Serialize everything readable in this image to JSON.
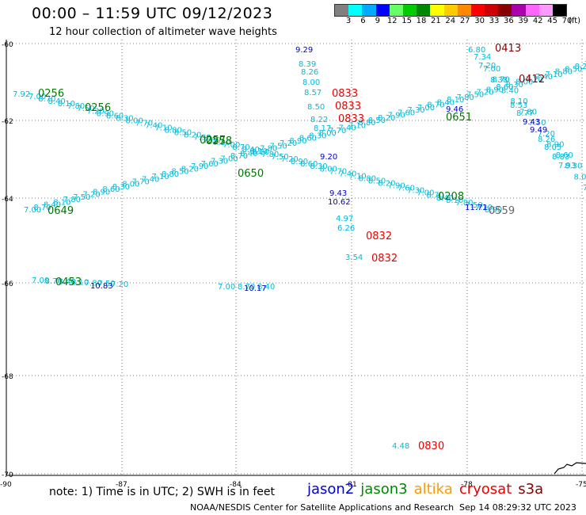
{
  "header": {
    "title": "00:00 – 11:59 UTC 09/12/2023",
    "subtitle": "12 hour collection of altimeter wave heights"
  },
  "colorbar": {
    "colors": [
      "#808080",
      "#00ffff",
      "#00aaff",
      "#0000ff",
      "#66ff66",
      "#00cc00",
      "#008800",
      "#ffff00",
      "#ffcc00",
      "#ff8800",
      "#ff0000",
      "#cc0000",
      "#880000",
      "#aa00aa",
      "#ff66ff",
      "#ff99ff",
      "#000000"
    ],
    "labels": [
      "3",
      "6",
      "9",
      "12",
      "15",
      "18",
      "21",
      "24",
      "27",
      "30",
      "33",
      "36",
      "39",
      "42",
      "45",
      "70"
    ],
    "unit": "(ft)"
  },
  "axes": {
    "lat_labels": [
      "-60",
      "-62",
      "-64",
      "-66",
      "-68",
      "-70"
    ],
    "lon_labels": [
      "-90",
      "-87",
      "-84",
      "-81",
      "-78",
      "-75"
    ]
  },
  "markers": [
    {
      "text": "0256",
      "color": "#007700",
      "cls": "pass"
    },
    {
      "text": "0256",
      "color": "#007700",
      "cls": "pass"
    },
    {
      "text": "0257",
      "color": "#007700",
      "cls": "pass"
    },
    {
      "text": "0258",
      "color": "#007700",
      "cls": "pass"
    },
    {
      "text": "0650",
      "color": "#007700",
      "cls": "pass"
    },
    {
      "text": "0649",
      "color": "#007700",
      "cls": "pass"
    },
    {
      "text": "0453",
      "color": "#007700",
      "cls": "pass"
    },
    {
      "text": "0833",
      "color": "#ee0000",
      "cls": "pass"
    },
    {
      "text": "0833",
      "color": "#ee0000",
      "cls": "pass"
    },
    {
      "text": "0833",
      "color": "#ee0000",
      "cls": "pass"
    },
    {
      "text": "0832",
      "color": "#ee0000",
      "cls": "pass"
    },
    {
      "text": "0832",
      "color": "#ee0000",
      "cls": "pass"
    },
    {
      "text": "0830",
      "color": "#ee0000",
      "cls": "pass"
    },
    {
      "text": "0413",
      "color": "#880000",
      "cls": "pass"
    },
    {
      "text": "0412",
      "color": "#880000",
      "cls": "pass"
    },
    {
      "text": "0651",
      "color": "#007700",
      "cls": "pass"
    },
    {
      "text": "0208",
      "color": "#007700",
      "cls": "pass"
    },
    {
      "text": "0559",
      "color": "#666666",
      "cls": "pass"
    }
  ],
  "values": [
    {
      "text": "9.29",
      "color": "#0000cc"
    },
    {
      "text": "8.39",
      "color": "#00bbdd"
    },
    {
      "text": "8.26",
      "color": "#00bbdd"
    },
    {
      "text": "8.00",
      "color": "#00bbdd"
    },
    {
      "text": "8.57",
      "color": "#00bbdd"
    },
    {
      "text": "8.50",
      "color": "#00bbdd"
    },
    {
      "text": "8.22",
      "color": "#00bbdd"
    },
    {
      "text": "8.17",
      "color": "#00bbdd"
    },
    {
      "text": "9.20",
      "color": "#0000cc"
    },
    {
      "text": "9.43",
      "color": "#0000cc"
    },
    {
      "text": "10.62",
      "color": "#0000cc"
    },
    {
      "text": "4.97",
      "color": "#00bbdd"
    },
    {
      "text": "6.26",
      "color": "#00bbdd"
    },
    {
      "text": "3.54",
      "color": "#00bbdd"
    },
    {
      "text": "4.48",
      "color": "#00bbdd"
    },
    {
      "text": "7.92",
      "color": "#00bbdd"
    },
    {
      "text": "10.83",
      "color": "#0000cc"
    },
    {
      "text": "10.17",
      "color": "#0000cc"
    },
    {
      "text": "6.80",
      "color": "#00bbdd"
    },
    {
      "text": "7.34",
      "color": "#00bbdd"
    },
    {
      "text": "7.20",
      "color": "#00bbdd"
    },
    {
      "text": "8.38",
      "color": "#00bbdd"
    },
    {
      "text": "8.53",
      "color": "#00bbdd"
    },
    {
      "text": "8.77",
      "color": "#00bbdd"
    },
    {
      "text": "9.43",
      "color": "#0000cc"
    },
    {
      "text": "9.49",
      "color": "#0000cc"
    },
    {
      "text": "8.26",
      "color": "#00bbdd"
    },
    {
      "text": "8.05",
      "color": "#00bbdd"
    },
    {
      "text": "8.83",
      "color": "#00bbdd"
    },
    {
      "text": "7.93",
      "color": "#00bbdd"
    },
    {
      "text": "11.71",
      "color": "#0000cc"
    },
    {
      "text": "9.46",
      "color": "#0000cc"
    }
  ],
  "footer": {
    "note": "note:  1) Time is in UTC;  2) SWH is in feet",
    "legend": [
      {
        "name": "jason2",
        "color": "#0000dd"
      },
      {
        "name": "jason3",
        "color": "#008800"
      },
      {
        "name": "altika",
        "color": "#ff9900"
      },
      {
        "name": "cryosat",
        "color": "#ee0000"
      },
      {
        "name": "s3a",
        "color": "#880000"
      }
    ],
    "credit": "NOAA/NESDIS Center for Satellite Applications and Research",
    "timestamp": "Sep 14 08:29:32 UTC 2023"
  }
}
